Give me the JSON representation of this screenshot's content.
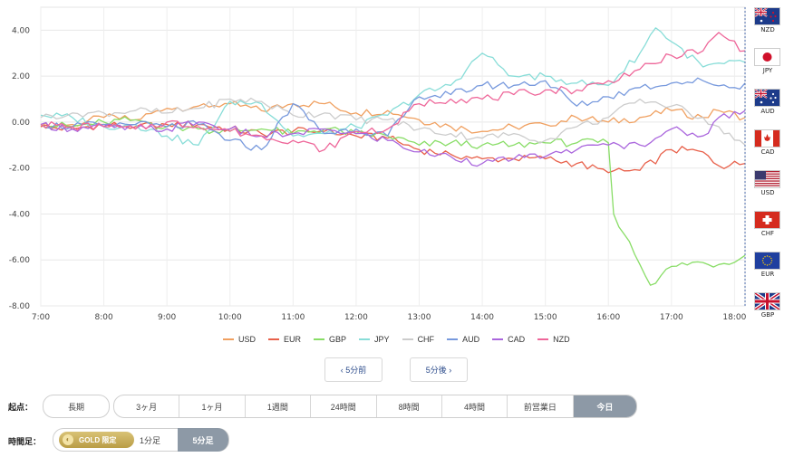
{
  "chart_data": {
    "type": "line",
    "xlabel": "",
    "ylabel": "",
    "ylim": [
      -8.0,
      5.0
    ],
    "xlim": [
      "7:00",
      "18:10"
    ],
    "y_ticks": [
      "4.00",
      "2.00",
      "0.00",
      "-2.00",
      "-4.00",
      "-6.00",
      "-8.00"
    ],
    "x_ticks": [
      "7:00",
      "8:00",
      "9:00",
      "10:00",
      "11:00",
      "12:00",
      "13:00",
      "14:00",
      "15:00",
      "16:00",
      "17:00",
      "18:00"
    ],
    "grid": true,
    "legend_position": "bottom",
    "series": [
      {
        "name": "USD",
        "color": "#f0a060",
        "points": [
          [
            "7:00",
            -0.2
          ],
          [
            "7:30",
            -0.1
          ],
          [
            "8:00",
            0.2
          ],
          [
            "8:30",
            0.1
          ],
          [
            "9:00",
            0.6
          ],
          [
            "9:30",
            0.7
          ],
          [
            "10:00",
            0.8
          ],
          [
            "10:30",
            0.5
          ],
          [
            "11:00",
            0.8
          ],
          [
            "11:30",
            0.8
          ],
          [
            "12:00",
            0.4
          ],
          [
            "12:30",
            0.5
          ],
          [
            "13:00",
            0.1
          ],
          [
            "13:30",
            -0.2
          ],
          [
            "14:00",
            -0.4
          ],
          [
            "14:30",
            -0.2
          ],
          [
            "15:00",
            -0.1
          ],
          [
            "15:30",
            0.2
          ],
          [
            "16:00",
            0.0
          ],
          [
            "16:30",
            0.2
          ],
          [
            "17:00",
            0.5
          ],
          [
            "17:30",
            0.2
          ],
          [
            "17:45",
            0.5
          ],
          [
            "18:10",
            0.2
          ]
        ]
      },
      {
        "name": "EUR",
        "color": "#e8604a",
        "points": [
          [
            "7:00",
            -0.2
          ],
          [
            "7:30",
            -0.3
          ],
          [
            "8:00",
            -0.1
          ],
          [
            "8:30",
            -0.2
          ],
          [
            "9:00",
            -0.1
          ],
          [
            "9:30",
            -0.1
          ],
          [
            "10:00",
            -0.3
          ],
          [
            "10:30",
            -0.5
          ],
          [
            "11:00",
            -0.4
          ],
          [
            "11:30",
            -0.4
          ],
          [
            "12:00",
            -0.6
          ],
          [
            "12:30",
            -0.7
          ],
          [
            "13:00",
            -1.2
          ],
          [
            "13:30",
            -1.4
          ],
          [
            "14:00",
            -1.6
          ],
          [
            "14:30",
            -1.6
          ],
          [
            "15:00",
            -1.6
          ],
          [
            "15:30",
            -1.8
          ],
          [
            "16:00",
            -2.2
          ],
          [
            "16:30",
            -2.1
          ],
          [
            "17:00",
            -1.2
          ],
          [
            "17:30",
            -1.3
          ],
          [
            "17:45",
            -1.9
          ],
          [
            "18:10",
            -1.8
          ]
        ]
      },
      {
        "name": "GBP",
        "color": "#88dd66",
        "points": [
          [
            "7:00",
            -0.1
          ],
          [
            "7:30",
            -0.2
          ],
          [
            "8:00",
            0.0
          ],
          [
            "8:30",
            0.1
          ],
          [
            "9:00",
            -0.2
          ],
          [
            "9:30",
            -0.3
          ],
          [
            "10:00",
            -0.4
          ],
          [
            "10:30",
            -0.3
          ],
          [
            "11:00",
            -0.5
          ],
          [
            "11:30",
            -0.3
          ],
          [
            "12:00",
            -0.5
          ],
          [
            "12:30",
            -0.6
          ],
          [
            "13:00",
            -1.0
          ],
          [
            "13:30",
            -0.9
          ],
          [
            "14:00",
            -1.0
          ],
          [
            "14:30",
            -1.0
          ],
          [
            "15:00",
            -0.9
          ],
          [
            "15:30",
            -0.9
          ],
          [
            "16:00",
            -0.9
          ],
          [
            "16:05",
            -4.0
          ],
          [
            "16:20",
            -5.2
          ],
          [
            "16:30",
            -6.2
          ],
          [
            "16:40",
            -7.1
          ],
          [
            "16:55",
            -6.4
          ],
          [
            "17:20",
            -6.1
          ],
          [
            "17:45",
            -6.2
          ],
          [
            "18:10",
            -5.8
          ]
        ]
      },
      {
        "name": "JPY",
        "color": "#88ddd8",
        "points": [
          [
            "7:00",
            0.3
          ],
          [
            "7:30",
            0.2
          ],
          [
            "8:00",
            -0.2
          ],
          [
            "8:30",
            -0.1
          ],
          [
            "9:00",
            -0.6
          ],
          [
            "9:30",
            -1.0
          ],
          [
            "10:00",
            0.9
          ],
          [
            "10:30",
            0.8
          ],
          [
            "11:00",
            -0.6
          ],
          [
            "11:30",
            -0.5
          ],
          [
            "12:00",
            -0.2
          ],
          [
            "12:30",
            0.3
          ],
          [
            "13:00",
            1.2
          ],
          [
            "13:30",
            1.6
          ],
          [
            "14:00",
            3.0
          ],
          [
            "14:30",
            2.0
          ],
          [
            "15:00",
            2.0
          ],
          [
            "15:30",
            1.7
          ],
          [
            "16:00",
            1.6
          ],
          [
            "16:30",
            3.0
          ],
          [
            "16:45",
            4.1
          ],
          [
            "17:00",
            3.5
          ],
          [
            "17:30",
            2.4
          ],
          [
            "18:10",
            2.6
          ]
        ]
      },
      {
        "name": "CHF",
        "color": "#cccccc",
        "points": [
          [
            "7:00",
            0.2
          ],
          [
            "7:30",
            0.4
          ],
          [
            "8:00",
            0.4
          ],
          [
            "8:30",
            0.5
          ],
          [
            "9:00",
            0.4
          ],
          [
            "9:30",
            0.6
          ],
          [
            "10:00",
            1.0
          ],
          [
            "10:30",
            0.9
          ],
          [
            "11:00",
            0.3
          ],
          [
            "11:30",
            0.4
          ],
          [
            "12:00",
            0.1
          ],
          [
            "12:30",
            0.1
          ],
          [
            "13:00",
            -0.3
          ],
          [
            "13:30",
            -0.5
          ],
          [
            "14:00",
            -0.7
          ],
          [
            "14:30",
            -0.5
          ],
          [
            "15:00",
            -0.8
          ],
          [
            "15:30",
            -0.2
          ],
          [
            "16:00",
            0.2
          ],
          [
            "16:30",
            1.0
          ],
          [
            "17:00",
            0.7
          ],
          [
            "17:30",
            0.2
          ],
          [
            "17:45",
            -0.2
          ],
          [
            "18:10",
            -1.0
          ]
        ]
      },
      {
        "name": "AUD",
        "color": "#7799dd",
        "points": [
          [
            "7:00",
            -0.1
          ],
          [
            "7:30",
            -0.2
          ],
          [
            "8:00",
            -0.1
          ],
          [
            "8:30",
            -0.1
          ],
          [
            "9:00",
            -0.2
          ],
          [
            "9:30",
            -0.1
          ],
          [
            "10:00",
            -0.8
          ],
          [
            "10:30",
            -1.2
          ],
          [
            "11:00",
            0.8
          ],
          [
            "11:30",
            -0.5
          ],
          [
            "12:00",
            -0.3
          ],
          [
            "12:30",
            -0.6
          ],
          [
            "13:00",
            1.1
          ],
          [
            "13:30",
            1.2
          ],
          [
            "14:00",
            1.6
          ],
          [
            "14:30",
            1.6
          ],
          [
            "15:00",
            1.8
          ],
          [
            "15:30",
            0.7
          ],
          [
            "16:00",
            1.1
          ],
          [
            "16:30",
            1.5
          ],
          [
            "17:00",
            1.7
          ],
          [
            "17:30",
            1.8
          ],
          [
            "18:00",
            1.5
          ],
          [
            "18:10",
            1.7
          ]
        ]
      },
      {
        "name": "CAD",
        "color": "#aa66dd",
        "points": [
          [
            "7:00",
            -0.1
          ],
          [
            "7:30",
            -0.3
          ],
          [
            "8:00",
            -0.2
          ],
          [
            "8:30",
            -0.3
          ],
          [
            "9:00",
            -0.3
          ],
          [
            "9:30",
            0.0
          ],
          [
            "10:00",
            -0.3
          ],
          [
            "10:30",
            -0.6
          ],
          [
            "11:00",
            -0.5
          ],
          [
            "11:30",
            -0.3
          ],
          [
            "12:00",
            -0.5
          ],
          [
            "12:30",
            -0.8
          ],
          [
            "13:00",
            -1.3
          ],
          [
            "13:30",
            -1.5
          ],
          [
            "14:00",
            -1.8
          ],
          [
            "14:30",
            -1.6
          ],
          [
            "15:00",
            -1.5
          ],
          [
            "15:30",
            -1.2
          ],
          [
            "16:00",
            -1.0
          ],
          [
            "16:30",
            -1.0
          ],
          [
            "17:00",
            -0.3
          ],
          [
            "17:30",
            -0.6
          ],
          [
            "17:45",
            0.2
          ],
          [
            "18:10",
            0.5
          ]
        ]
      },
      {
        "name": "NZD",
        "color": "#ee6699",
        "points": [
          [
            "7:00",
            -0.1
          ],
          [
            "7:30",
            -0.2
          ],
          [
            "8:00",
            -0.2
          ],
          [
            "8:30",
            -0.3
          ],
          [
            "9:00",
            0.0
          ],
          [
            "9:30",
            -0.2
          ],
          [
            "10:00",
            -0.4
          ],
          [
            "10:30",
            -0.6
          ],
          [
            "11:00",
            -0.8
          ],
          [
            "11:30",
            -1.2
          ],
          [
            "12:00",
            -0.4
          ],
          [
            "12:30",
            -0.3
          ],
          [
            "13:00",
            0.8
          ],
          [
            "13:30",
            1.0
          ],
          [
            "14:00",
            1.0
          ],
          [
            "14:30",
            1.2
          ],
          [
            "15:00",
            1.4
          ],
          [
            "15:30",
            1.4
          ],
          [
            "16:00",
            1.8
          ],
          [
            "16:30",
            2.3
          ],
          [
            "17:00",
            2.9
          ],
          [
            "17:30",
            3.1
          ],
          [
            "17:45",
            3.9
          ],
          [
            "18:10",
            3.1
          ]
        ]
      }
    ]
  },
  "flags": [
    {
      "code": "NZD",
      "icon": "nz-flag-icon"
    },
    {
      "code": "JPY",
      "icon": "jp-flag-icon"
    },
    {
      "code": "AUD",
      "icon": "au-flag-icon"
    },
    {
      "code": "CAD",
      "icon": "ca-flag-icon"
    },
    {
      "code": "USD",
      "icon": "us-flag-icon"
    },
    {
      "code": "CHF",
      "icon": "ch-flag-icon"
    },
    {
      "code": "EUR",
      "icon": "eu-flag-icon"
    },
    {
      "code": "GBP",
      "icon": "gb-flag-icon"
    }
  ],
  "nav": {
    "prev": "‹ 5分前",
    "next": "5分後 ›"
  },
  "period": {
    "label": "起点：",
    "long_term": "長期",
    "options": [
      "3ヶ月",
      "1ヶ月",
      "1週間",
      "24時間",
      "8時間",
      "4時間",
      "前営業日",
      "今日"
    ],
    "selected": "今日"
  },
  "interval": {
    "label": "時間足：",
    "gold_badge": "GOLD 限定",
    "options": [
      "1分足",
      "5分足"
    ],
    "selected": "5分足"
  }
}
